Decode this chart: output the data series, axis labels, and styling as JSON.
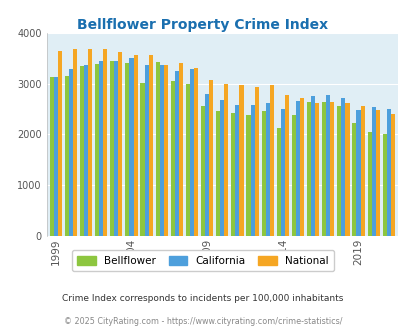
{
  "title": "Bellflower Property Crime Index",
  "title_color": "#1a6faf",
  "years": [
    1999,
    2000,
    2001,
    2002,
    2003,
    2004,
    2005,
    2006,
    2007,
    2008,
    2009,
    2010,
    2011,
    2012,
    2013,
    2014,
    2015,
    2016,
    2017,
    2018,
    2019,
    2020,
    2021
  ],
  "bellflower": [
    3130,
    3160,
    3340,
    3390,
    3450,
    3400,
    3010,
    3430,
    3050,
    2990,
    2570,
    2470,
    2420,
    2390,
    2460,
    2120,
    2380,
    2640,
    2640,
    2560,
    2230,
    2050,
    2000
  ],
  "california": [
    3140,
    3300,
    3360,
    3440,
    3450,
    3500,
    3360,
    3360,
    3260,
    3290,
    2790,
    2680,
    2590,
    2580,
    2620,
    2500,
    2660,
    2760,
    2770,
    2720,
    2490,
    2540,
    2500
  ],
  "national": [
    3640,
    3680,
    3680,
    3680,
    3620,
    3570,
    3560,
    3360,
    3400,
    3310,
    3080,
    2990,
    2980,
    2940,
    2980,
    2780,
    2720,
    2620,
    2640,
    2620,
    2560,
    2490,
    2400
  ],
  "bellflower_color": "#8dc63f",
  "california_color": "#4d9fdc",
  "national_color": "#f5a623",
  "bg_color": "#e0eef5",
  "ylim": [
    0,
    4000
  ],
  "yticks": [
    0,
    1000,
    2000,
    3000,
    4000
  ],
  "xlabel_ticks": [
    1999,
    2004,
    2009,
    2014,
    2019
  ],
  "footnote1": "Crime Index corresponds to incidents per 100,000 inhabitants",
  "footnote2": "© 2025 CityRating.com - https://www.cityrating.com/crime-statistics/",
  "footnote1_color": "#333333",
  "footnote2_color": "#888888"
}
